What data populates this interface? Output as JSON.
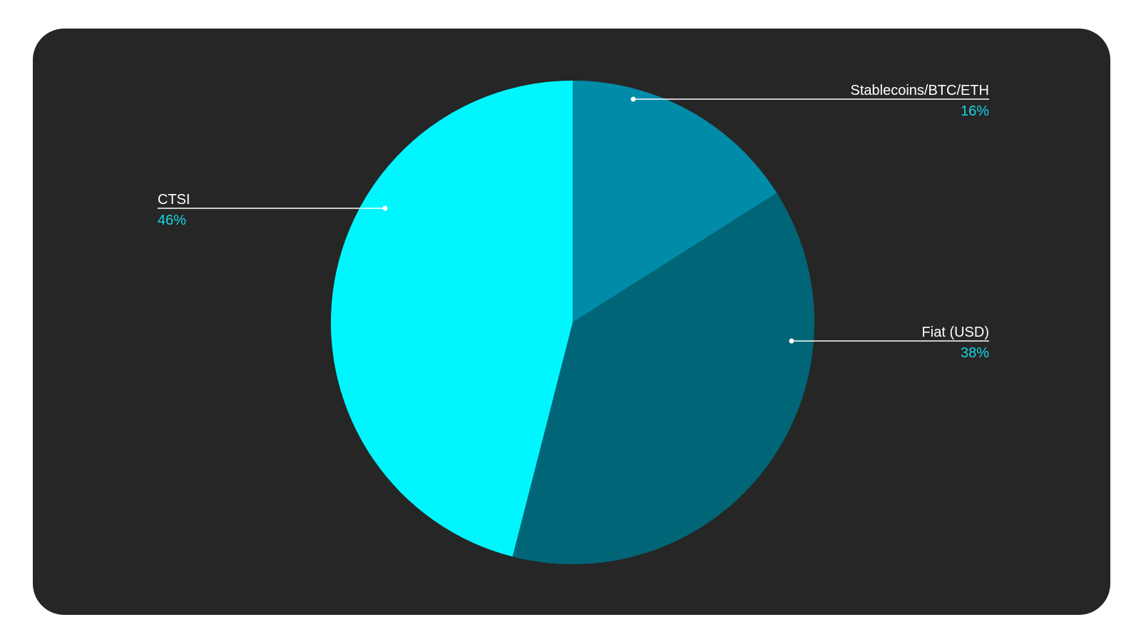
{
  "colors": {
    "background": "#262626",
    "leader_line": "#ffffff",
    "label_text": "#ffffff",
    "percent_text": "#17d6e6"
  },
  "chart_data": {
    "type": "pie",
    "title": "",
    "legend": "none",
    "start_angle_deg": 0,
    "direction": "clockwise",
    "slices": [
      {
        "label": "Stablecoins/BTC/ETH",
        "value": 16,
        "percent_label": "16%",
        "color": "#008ca8"
      },
      {
        "label": "Fiat (USD)",
        "value": 38,
        "percent_label": "38%",
        "color": "#006677"
      },
      {
        "label": "CTSI",
        "value": 46,
        "percent_label": "46%",
        "color": "#00f6ff"
      }
    ]
  }
}
